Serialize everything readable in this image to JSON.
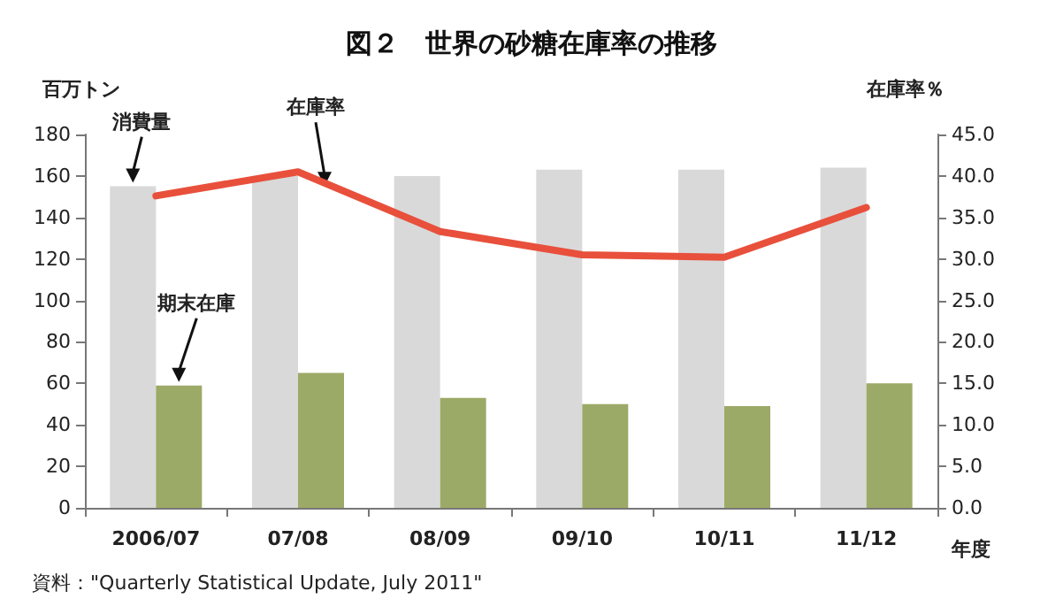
{
  "chart_data": {
    "type": "bar",
    "title": "図２　世界の砂糖在庫率の推移",
    "ylabel": "百万トン",
    "y2label": "在庫率％",
    "xlabel": "年度",
    "categories": [
      "2006/07",
      "07/08",
      "08/09",
      "09/10",
      "10/11",
      "11/12"
    ],
    "series": [
      {
        "name": "消費量",
        "color": "#d9d9d9",
        "values": [
          155,
          160,
          160,
          163,
          163,
          164
        ]
      },
      {
        "name": "期末在庫",
        "color": "#9caa67",
        "values": [
          59,
          65,
          53,
          50,
          49,
          60
        ]
      },
      {
        "name": "在庫率",
        "type": "line",
        "axis": "y2",
        "color": "#e8503c",
        "values": [
          37.6,
          40.5,
          33.3,
          30.5,
          30.2,
          36.2
        ]
      }
    ],
    "ylim": [
      0,
      180
    ],
    "yticks": [
      0,
      20,
      40,
      60,
      80,
      100,
      120,
      140,
      160,
      180
    ],
    "y2lim": [
      0,
      45
    ],
    "y2ticks": [
      {
        "value": 0,
        "label": "0.0"
      },
      {
        "value": 5,
        "label": "5.0"
      },
      {
        "value": 10,
        "label": "10.0"
      },
      {
        "value": 15,
        "label": "15.0"
      },
      {
        "value": 20,
        "label": "20.0"
      },
      {
        "value": 25,
        "label": "25.0"
      },
      {
        "value": 30,
        "label": "30.0"
      },
      {
        "value": 35,
        "label": "35.0"
      },
      {
        "value": 40,
        "label": "40.0"
      },
      {
        "value": 45,
        "label": "45.0"
      }
    ],
    "grid": false,
    "legend": false,
    "marker": "none",
    "annotations": [
      "資料：\"Quarterly Statistical Update, July 2011\""
    ]
  }
}
